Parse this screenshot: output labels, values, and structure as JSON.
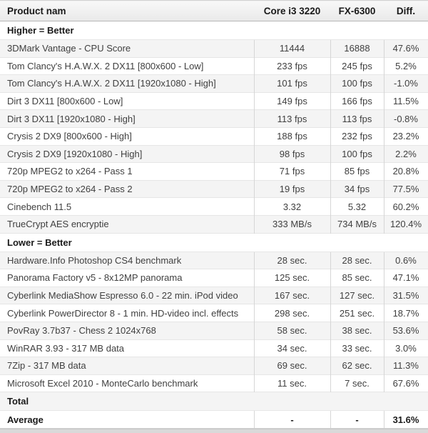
{
  "chart_data": {
    "type": "table",
    "columns": [
      "Product nam",
      "Core i3 3220",
      "FX-6300",
      "Diff."
    ],
    "rows": [
      {
        "kind": "section",
        "label": "Higher = Better"
      },
      {
        "kind": "data",
        "product": "3DMark Vantage - CPU Score",
        "core_i3_3220": "11444",
        "fx_6300": "16888",
        "diff": "47.6%"
      },
      {
        "kind": "data",
        "product": "Tom Clancy's H.A.W.X. 2 DX11 [800x600 - Low]",
        "core_i3_3220": "233 fps",
        "fx_6300": "245 fps",
        "diff": "5.2%"
      },
      {
        "kind": "data",
        "product": "Tom Clancy's H.A.W.X. 2 DX11 [1920x1080 - High]",
        "core_i3_3220": "101 fps",
        "fx_6300": "100 fps",
        "diff": "-1.0%"
      },
      {
        "kind": "data",
        "product": "Dirt 3 DX11 [800x600 - Low]",
        "core_i3_3220": "149 fps",
        "fx_6300": "166 fps",
        "diff": "11.5%"
      },
      {
        "kind": "data",
        "product": "Dirt 3 DX11 [1920x1080 - High]",
        "core_i3_3220": "113 fps",
        "fx_6300": "113 fps",
        "diff": "-0.8%"
      },
      {
        "kind": "data",
        "product": "Crysis 2 DX9 [800x600 - High]",
        "core_i3_3220": "188 fps",
        "fx_6300": "232 fps",
        "diff": "23.2%"
      },
      {
        "kind": "data",
        "product": "Crysis 2 DX9 [1920x1080 - High]",
        "core_i3_3220": "98 fps",
        "fx_6300": "100 fps",
        "diff": "2.2%"
      },
      {
        "kind": "data",
        "product": "720p MPEG2 to x264 - Pass 1",
        "core_i3_3220": "71 fps",
        "fx_6300": "85 fps",
        "diff": "20.8%"
      },
      {
        "kind": "data",
        "product": "720p MPEG2 to x264 - Pass 2",
        "core_i3_3220": "19 fps",
        "fx_6300": "34 fps",
        "diff": "77.5%"
      },
      {
        "kind": "data",
        "product": "Cinebench 11.5",
        "core_i3_3220": "3.32",
        "fx_6300": "5.32",
        "diff": "60.2%"
      },
      {
        "kind": "data",
        "product": "TrueCrypt AES encryptie",
        "core_i3_3220": "333 MB/s",
        "fx_6300": "734 MB/s",
        "diff": "120.4%"
      },
      {
        "kind": "section",
        "label": "Lower = Better"
      },
      {
        "kind": "data",
        "product": "Hardware.Info Photoshop CS4 benchmark",
        "core_i3_3220": "28 sec.",
        "fx_6300": "28 sec.",
        "diff": "0.6%"
      },
      {
        "kind": "data",
        "product": "Panorama Factory v5 - 8x12MP panorama",
        "core_i3_3220": "125 sec.",
        "fx_6300": "85 sec.",
        "diff": "47.1%"
      },
      {
        "kind": "data",
        "product": "Cyberlink MediaShow Espresso 6.0 - 22 min. iPod video",
        "core_i3_3220": "167 sec.",
        "fx_6300": "127 sec.",
        "diff": "31.5%"
      },
      {
        "kind": "data",
        "product": "Cyberlink PowerDirector 8 - 1 min. HD-video incl. effects",
        "core_i3_3220": "298 sec.",
        "fx_6300": "251 sec.",
        "diff": "18.7%"
      },
      {
        "kind": "data",
        "product": "PovRay 3.7b37 - Chess 2 1024x768",
        "core_i3_3220": "58 sec.",
        "fx_6300": "38 sec.",
        "diff": "53.6%"
      },
      {
        "kind": "data",
        "product": "WinRAR 3.93 - 317 MB data",
        "core_i3_3220": "34 sec.",
        "fx_6300": "33 sec.",
        "diff": "3.0%"
      },
      {
        "kind": "data",
        "product": "7Zip - 317 MB data",
        "core_i3_3220": "69 sec.",
        "fx_6300": "62 sec.",
        "diff": "11.3%"
      },
      {
        "kind": "data",
        "product": "Microsoft Excel 2010 - MonteCarlo benchmark",
        "core_i3_3220": "11 sec.",
        "fx_6300": "7 sec.",
        "diff": "67.6%"
      },
      {
        "kind": "section",
        "label": "Total"
      },
      {
        "kind": "average",
        "product": "Average",
        "core_i3_3220": "-",
        "fx_6300": "-",
        "diff": "31.6%"
      }
    ]
  },
  "colors": {
    "stripe": "#f4f4f4",
    "header_bg_top": "#f8f8f8",
    "header_bg_bottom": "#e9e9e9",
    "cell_border": "#d6d6d6",
    "row_border": "#e6e6e6",
    "text": "#404040",
    "bold_text": "#1a1a1a",
    "bottom_strip": "#d9d9d9"
  }
}
